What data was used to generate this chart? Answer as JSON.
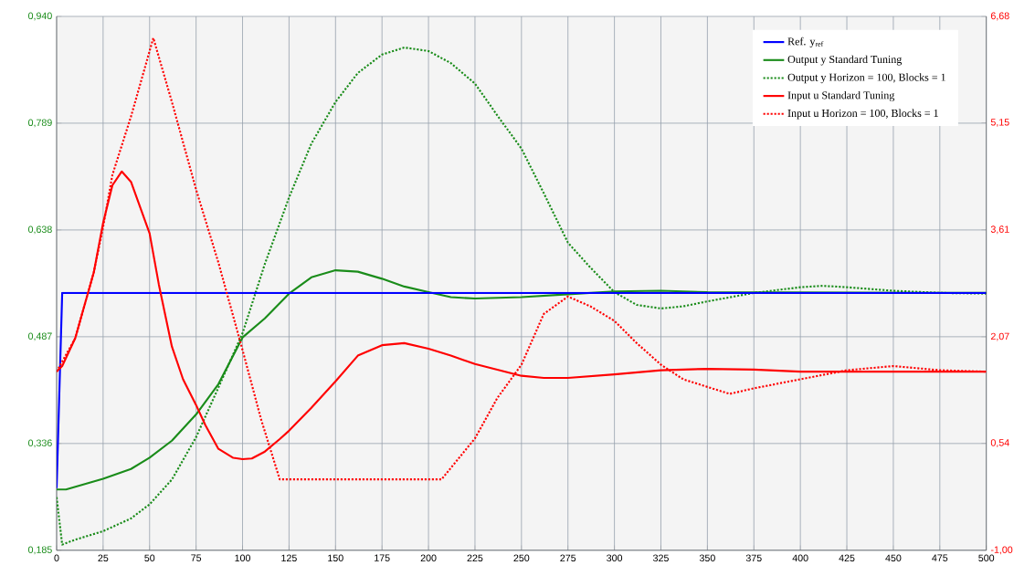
{
  "chart_data": {
    "type": "line",
    "xlim": [
      0,
      500
    ],
    "xticks": [
      0,
      25,
      50,
      75,
      100,
      125,
      150,
      175,
      200,
      225,
      250,
      275,
      300,
      325,
      350,
      375,
      400,
      425,
      450,
      475,
      500
    ],
    "ylim": [
      0.185,
      0.94
    ],
    "yticks": [
      {
        "value": 0.185,
        "label": "0,185"
      },
      {
        "value": 0.336,
        "label": "0,336"
      },
      {
        "value": 0.487,
        "label": "0,487"
      },
      {
        "value": 0.638,
        "label": "0,638"
      },
      {
        "value": 0.789,
        "label": "0,789"
      },
      {
        "value": 0.94,
        "label": "0,940"
      }
    ],
    "y2lim": [
      -1,
      6.68
    ],
    "y2ticks": [
      {
        "value": -1,
        "label": "-1,00"
      },
      {
        "value": 0.54,
        "label": "0,54"
      },
      {
        "value": 2.07,
        "label": "2,07"
      },
      {
        "value": 3.61,
        "label": "3,61"
      },
      {
        "value": 5.15,
        "label": "5,15"
      },
      {
        "value": 6.68,
        "label": "6,68"
      }
    ],
    "grid": true,
    "legend": "top right",
    "marker": "none",
    "series": [
      {
        "name": "Ref. y$_{ref}$",
        "color": "#0000ff",
        "line_style": "solid",
        "x": [
          0,
          3,
          500
        ],
        "values": [
          0.273,
          0.549,
          0.549
        ]
      },
      {
        "name": "Output y Standard Tuning",
        "color": "#1a8c1a",
        "line_style": "solid",
        "x": [
          0,
          5,
          25,
          40,
          50,
          62,
          75,
          87,
          100,
          112,
          125,
          137,
          150,
          162,
          175,
          187,
          200,
          212,
          225,
          250,
          275,
          300,
          325,
          350,
          400,
          500
        ],
        "values": [
          0.271,
          0.271,
          0.286,
          0.3,
          0.316,
          0.34,
          0.377,
          0.42,
          0.486,
          0.513,
          0.548,
          0.571,
          0.581,
          0.579,
          0.569,
          0.558,
          0.55,
          0.543,
          0.541,
          0.543,
          0.547,
          0.551,
          0.552,
          0.55,
          null,
          0.549
        ]
      },
      {
        "name": "Output y Horizon = 100, Blocks = 1",
        "color": "#1a8c1a",
        "line_style": "dotted",
        "x": [
          0,
          3,
          10,
          25,
          40,
          50,
          62,
          75,
          87,
          100,
          112,
          125,
          137,
          150,
          162,
          175,
          187,
          200,
          212,
          225,
          237,
          250,
          262,
          275,
          287,
          300,
          312,
          325,
          337,
          350,
          375,
          400,
          412,
          425,
          450,
          475,
          500
        ],
        "values": [
          0.26,
          0.193,
          0.2,
          0.212,
          0.23,
          0.25,
          0.285,
          0.345,
          0.415,
          0.492,
          0.59,
          0.684,
          0.76,
          0.819,
          0.86,
          0.886,
          0.896,
          0.891,
          0.874,
          0.845,
          0.8,
          0.753,
          0.69,
          0.62,
          0.585,
          0.55,
          0.532,
          0.527,
          0.53,
          0.537,
          0.549,
          0.557,
          0.559,
          0.557,
          0.552,
          0.549,
          0.548
        ]
      },
      {
        "name": "Input u Standard Tuning",
        "color": "#ff0000",
        "line_style": "solid",
        "axis": "y2",
        "x": [
          0,
          3,
          10,
          20,
          25,
          30,
          35,
          40,
          50,
          55,
          62,
          68,
          75,
          80,
          87,
          95,
          100,
          105,
          112,
          120,
          125,
          137,
          150,
          162,
          175,
          187,
          200,
          212,
          225,
          250,
          262,
          275,
          300,
          325,
          350,
          375,
          400,
          450,
          500
        ],
        "values": [
          1.57,
          1.65,
          2.05,
          3.0,
          3.71,
          4.25,
          4.45,
          4.3,
          3.56,
          2.82,
          1.93,
          1.46,
          1.09,
          0.8,
          0.46,
          0.33,
          0.31,
          0.32,
          0.42,
          0.6,
          0.72,
          1.05,
          1.43,
          1.8,
          1.95,
          1.98,
          1.9,
          1.8,
          1.68,
          1.51,
          1.48,
          1.48,
          1.53,
          1.59,
          1.61,
          1.6,
          1.57,
          1.57,
          1.57
        ]
      },
      {
        "name": "Input u Horizon = 100, Blocks = 1",
        "color": "#ff0000",
        "line_style": "dotted",
        "axis": "y2",
        "x": [
          0,
          10,
          20,
          25,
          30,
          40,
          45,
          52,
          62,
          75,
          87,
          100,
          110,
          120,
          207,
          225,
          237,
          250,
          262,
          275,
          287,
          300,
          312,
          325,
          337,
          350,
          362,
          375,
          400,
          425,
          450,
          475,
          500
        ],
        "values": [
          1.57,
          2.05,
          3.0,
          3.65,
          4.4,
          5.24,
          5.71,
          6.37,
          5.45,
          4.19,
          3.14,
          1.88,
          0.88,
          0.02,
          0.02,
          0.61,
          1.19,
          1.67,
          2.4,
          2.65,
          2.51,
          2.3,
          1.98,
          1.67,
          1.46,
          1.35,
          1.25,
          1.33,
          1.46,
          1.59,
          1.65,
          1.59,
          1.57
        ]
      }
    ]
  }
}
